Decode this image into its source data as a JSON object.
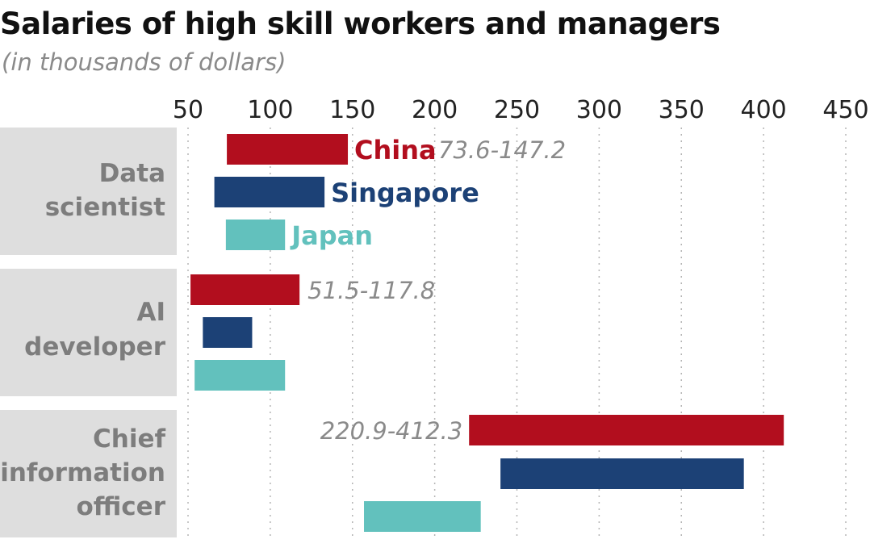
{
  "chart_data": {
    "type": "bar",
    "orientation": "horizontal-range",
    "title": "Salaries of high skill workers and managers",
    "subtitle": "(in thousands of dollars)",
    "xlim": [
      50,
      450
    ],
    "x_ticks": [
      50,
      100,
      150,
      200,
      250,
      300,
      350,
      400,
      450
    ],
    "grid": "vertical dotted",
    "categories": [
      {
        "label_lines": [
          "Data",
          "scientist"
        ]
      },
      {
        "label_lines": [
          "AI",
          "developer"
        ]
      },
      {
        "label_lines": [
          "Chief",
          "information",
          "officer"
        ]
      }
    ],
    "series": [
      {
        "name": "China",
        "color": "#b20e1e",
        "ranges": [
          [
            73.6,
            147.2
          ],
          [
            51.5,
            117.8
          ],
          [
            220.9,
            412.3
          ]
        ]
      },
      {
        "name": "Singapore",
        "color": "#1c4176",
        "ranges": [
          [
            66,
            133
          ],
          [
            59,
            89
          ],
          [
            240,
            388
          ]
        ]
      },
      {
        "name": "Japan",
        "color": "#62c1bd",
        "ranges": [
          [
            73,
            109
          ],
          [
            54,
            109
          ],
          [
            157,
            228
          ]
        ]
      }
    ],
    "range_annotations": [
      {
        "category": 0,
        "series": 0,
        "text": "73.6-147.2",
        "position": "right"
      },
      {
        "category": 1,
        "series": 0,
        "text": "51.5-117.8",
        "position": "right"
      },
      {
        "category": 2,
        "series": 0,
        "text": "220.9-412.3",
        "position": "left"
      }
    ],
    "series_labels_on_category": 0
  }
}
